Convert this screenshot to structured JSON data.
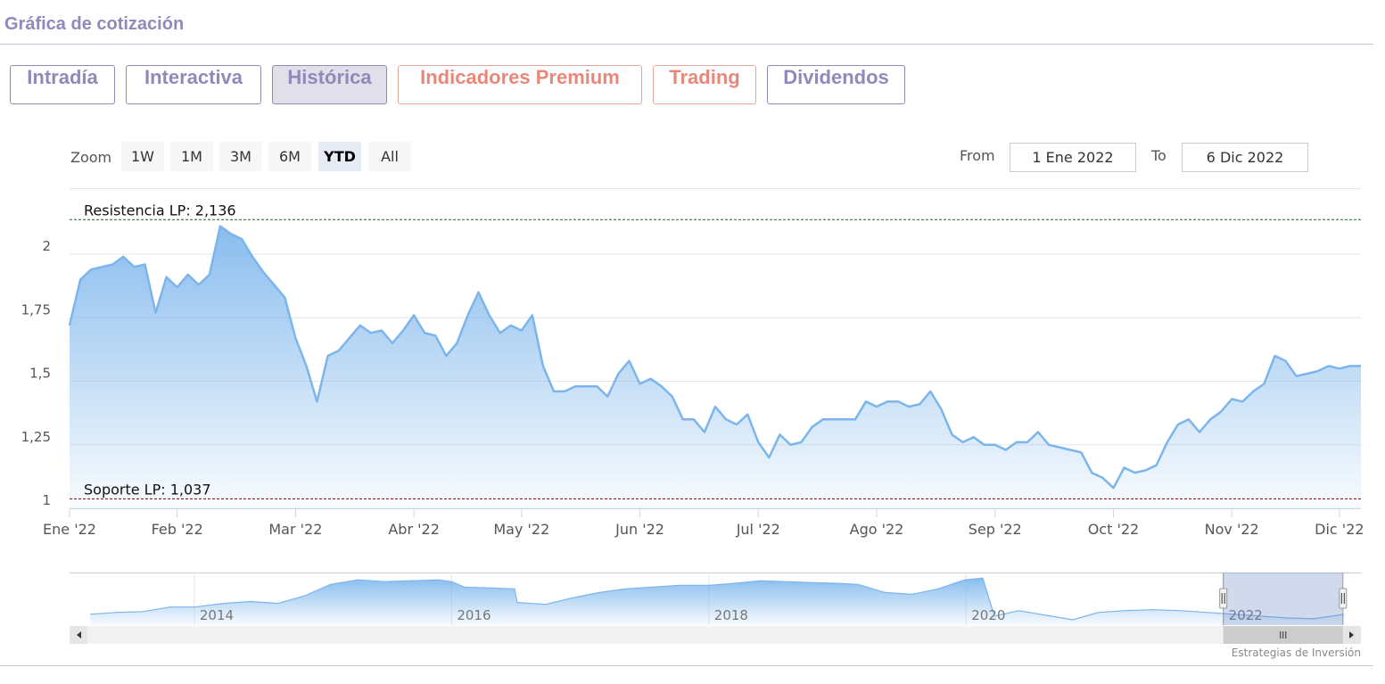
{
  "header": {
    "title": "Gráfica de cotización"
  },
  "tabs": [
    {
      "label": "Intradía"
    },
    {
      "label": "Interactiva"
    },
    {
      "label": "Histórica",
      "active": true
    },
    {
      "label": "Indicadores Premium",
      "variant": "premium"
    },
    {
      "label": "Trading",
      "variant": "premium"
    },
    {
      "label": "Dividendos"
    }
  ],
  "zoom": {
    "label": "Zoom",
    "buttons": [
      {
        "label": "1W"
      },
      {
        "label": "1M"
      },
      {
        "label": "3M"
      },
      {
        "label": "6M"
      },
      {
        "label": "YTD",
        "active": true
      },
      {
        "label": "All"
      }
    ]
  },
  "range": {
    "from_label": "From",
    "from": "1 Ene 2022",
    "to_label": "To",
    "to": "6 Dic 2022"
  },
  "credits": "Estrategias de Inversión",
  "chart_data": [
    {
      "type": "area",
      "color": "#7cb5ec",
      "grid": true,
      "categories": [
        "Ene '22",
        null,
        null,
        null,
        null,
        null,
        null,
        null,
        null,
        null,
        "Feb '22",
        null,
        null,
        null,
        null,
        null,
        null,
        null,
        null,
        null,
        null,
        "Mar '22",
        null,
        null,
        null,
        null,
        null,
        null,
        null,
        null,
        null,
        null,
        "Abr '22",
        null,
        null,
        null,
        null,
        null,
        null,
        null,
        null,
        null,
        "May '22",
        null,
        null,
        null,
        null,
        null,
        null,
        null,
        null,
        null,
        null,
        "Jun '22",
        null,
        null,
        null,
        null,
        null,
        null,
        null,
        null,
        null,
        null,
        "Jul '22",
        null,
        null,
        null,
        null,
        null,
        null,
        null,
        null,
        null,
        null,
        "Ago '22",
        null,
        null,
        null,
        null,
        null,
        null,
        null,
        null,
        null,
        null,
        "Sep '22",
        null,
        null,
        null,
        null,
        null,
        null,
        null,
        null,
        null,
        null,
        "Oct '22",
        null,
        null,
        null,
        null,
        null,
        null,
        null,
        null,
        null,
        null,
        "Nov '22",
        null,
        null,
        null,
        null,
        null,
        null,
        null,
        null,
        null,
        "Dic '22",
        null,
        null
      ],
      "values": [
        1.72,
        1.9,
        1.94,
        1.95,
        1.96,
        1.99,
        1.95,
        1.96,
        1.77,
        1.91,
        1.87,
        1.92,
        1.88,
        1.92,
        2.11,
        2.08,
        2.06,
        1.99,
        1.93,
        1.88,
        1.83,
        1.67,
        1.56,
        1.42,
        1.6,
        1.62,
        1.67,
        1.72,
        1.69,
        1.7,
        1.65,
        1.7,
        1.76,
        1.69,
        1.68,
        1.6,
        1.65,
        1.76,
        1.85,
        1.76,
        1.69,
        1.72,
        1.7,
        1.76,
        1.56,
        1.46,
        1.46,
        1.48,
        1.48,
        1.48,
        1.44,
        1.53,
        1.58,
        1.49,
        1.51,
        1.48,
        1.44,
        1.35,
        1.35,
        1.3,
        1.4,
        1.35,
        1.33,
        1.37,
        1.26,
        1.2,
        1.29,
        1.25,
        1.26,
        1.32,
        1.35,
        1.35,
        1.35,
        1.35,
        1.42,
        1.4,
        1.42,
        1.42,
        1.4,
        1.41,
        1.46,
        1.39,
        1.29,
        1.26,
        1.28,
        1.25,
        1.25,
        1.23,
        1.26,
        1.26,
        1.3,
        1.25,
        1.24,
        1.23,
        1.22,
        1.14,
        1.12,
        1.08,
        1.16,
        1.14,
        1.15,
        1.17,
        1.26,
        1.33,
        1.35,
        1.3,
        1.35,
        1.38,
        1.43,
        1.42,
        1.46,
        1.49,
        1.6,
        1.58,
        1.52,
        1.53,
        1.54,
        1.56,
        1.55,
        1.56,
        1.56
      ],
      "ylim": [
        1,
        2.26
      ],
      "yticks": [
        1,
        {
          "value": 1.25,
          "label": "1,25"
        },
        {
          "value": 1.5,
          "label": "1,5"
        },
        {
          "value": 1.75,
          "label": "1,75"
        },
        2
      ],
      "plot_lines": [
        {
          "value": 2.136,
          "label": "Resistencia LP: 2,136",
          "color": "#2e7d32"
        },
        {
          "value": 1.037,
          "label": "Soporte LP: 1,037",
          "color": "#8b1a1a"
        }
      ]
    },
    {
      "type": "area",
      "color": "#7cb5ec",
      "x": [
        2013.19,
        2013.4,
        2013.6,
        2013.81,
        2014.0,
        2014.23,
        2014.44,
        2014.65,
        2014.85,
        2015.06,
        2015.27,
        2015.48,
        2015.69,
        2015.9,
        2016.0,
        2016.1,
        2016.31,
        2016.49,
        2016.51,
        2016.73,
        2016.94,
        2017.15,
        2017.35,
        2017.56,
        2017.77,
        2018.0,
        2018.19,
        2018.4,
        2018.6,
        2018.81,
        2019.02,
        2019.16,
        2019.37,
        2019.58,
        2019.78,
        2019.99,
        2020.13,
        2020.22,
        2020.41,
        2020.62,
        2020.83,
        2021.03,
        2021.24,
        2021.45,
        2021.66,
        2021.87,
        2022.08,
        2022.28,
        2022.49,
        2022.7,
        2022.94
      ],
      "values": [
        1.39,
        1.54,
        1.61,
        1.98,
        1.98,
        2.28,
        2.43,
        2.28,
        2.87,
        3.83,
        4.2,
        4.06,
        4.13,
        4.2,
        4.06,
        3.61,
        3.54,
        3.46,
        2.35,
        2.2,
        2.72,
        3.17,
        3.46,
        3.61,
        3.76,
        3.76,
        3.91,
        4.13,
        4.06,
        3.98,
        3.91,
        3.83,
        3.17,
        3.02,
        3.46,
        4.2,
        4.35,
        1.24,
        1.69,
        1.31,
        0.94,
        1.54,
        1.69,
        1.76,
        1.69,
        1.54,
        1.39,
        1.24,
        1.09,
        1.02,
        1.39
      ],
      "xlim": [
        2013.03,
        2023.07
      ],
      "ylim": [
        0.5,
        4.8
      ],
      "xticks": [
        2014,
        2016,
        2018,
        2020,
        2022
      ],
      "selected_range": [
        2022.0,
        2022.93
      ]
    }
  ]
}
